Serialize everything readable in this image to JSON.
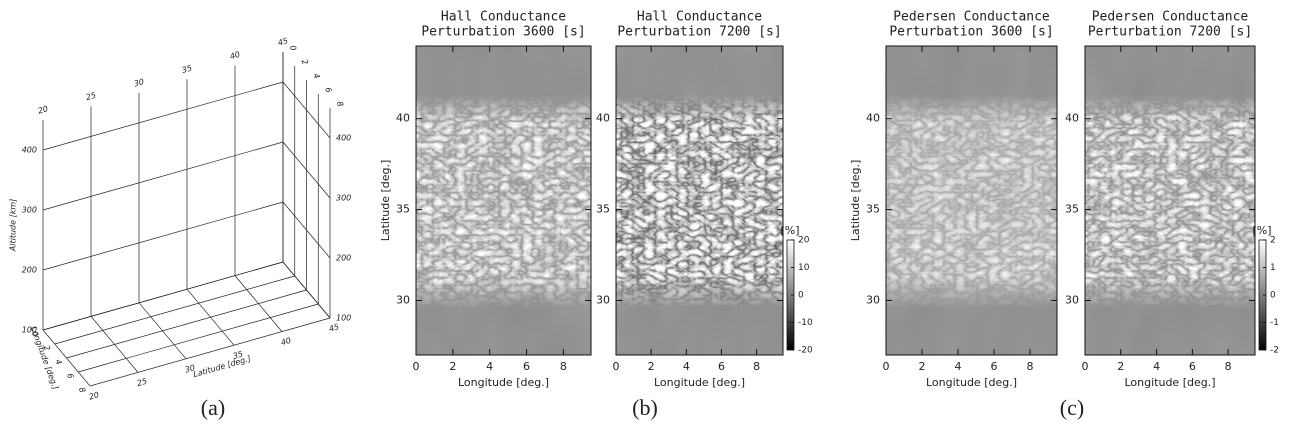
{
  "panel_labels": [
    "(a)",
    "(b)",
    "(c)"
  ],
  "chart_data": [
    {
      "type": "grid3d",
      "xlabel": "Latitude [deg.]",
      "ylabel": "Longitude [deg.]",
      "zlabel": "Altitude [km]",
      "xlim": [
        20,
        45
      ],
      "xticks": [
        20,
        25,
        30,
        35,
        40,
        45
      ],
      "ylim": [
        0,
        8
      ],
      "yticks": [
        0,
        2,
        4,
        6,
        8
      ],
      "zlim": [
        100,
        450
      ],
      "zticks": [
        100,
        200,
        300,
        400
      ]
    },
    {
      "type": "heatmap",
      "title": "Hall Conductance",
      "subtitle": "Perturbation    3600 [s]",
      "xlabel": "Longitude [deg.]",
      "ylabel": "Latitude [deg.]",
      "xlim": [
        0,
        9.5
      ],
      "xticks": [
        0,
        2,
        4,
        6,
        8
      ],
      "ylim": [
        27,
        44
      ],
      "yticks": [
        30,
        35,
        40
      ]
    },
    {
      "type": "heatmap",
      "title": "Hall Conductance",
      "subtitle": "Perturbation    7200 [s]",
      "xlabel": "Longitude [deg.]",
      "xlim": [
        0,
        9.5
      ],
      "xticks": [
        0,
        2,
        4,
        6,
        8
      ],
      "ylim": [
        27,
        44
      ],
      "yticks": [
        30,
        35,
        40
      ],
      "colorbar": {
        "label": "[%]",
        "lim": [
          -20,
          20
        ],
        "ticks": [
          -20,
          -10,
          0,
          10,
          20
        ]
      }
    },
    {
      "type": "heatmap",
      "title": "Pedersen Conductance",
      "subtitle": "Perturbation    3600 [s]",
      "xlabel": "Longitude [deg.]",
      "ylabel": "Latitude [deg.]",
      "xlim": [
        0,
        9.5
      ],
      "xticks": [
        0,
        2,
        4,
        6,
        8
      ],
      "ylim": [
        27,
        44
      ],
      "yticks": [
        30,
        35,
        40
      ]
    },
    {
      "type": "heatmap",
      "title": "Pedersen Conductance",
      "subtitle": "Perturbation    7200 [s]",
      "xlabel": "Longitude [deg.]",
      "xlim": [
        0,
        9.5
      ],
      "xticks": [
        0,
        2,
        4,
        6,
        8
      ],
      "ylim": [
        27,
        44
      ],
      "yticks": [
        30,
        35,
        40
      ],
      "colorbar": {
        "label": "[%]",
        "lim": [
          -2,
          2
        ],
        "ticks": [
          -2,
          -1,
          0,
          1,
          2
        ]
      }
    }
  ]
}
